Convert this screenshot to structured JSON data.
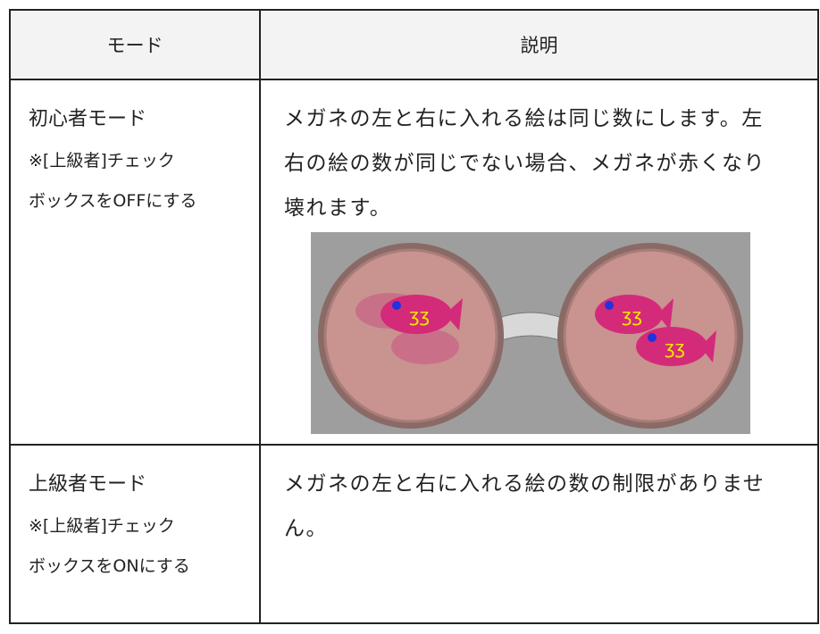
{
  "table": {
    "header": [
      "モード",
      "説明"
    ],
    "rows": [
      {
        "mode": "初心者モード",
        "note": [
          "※[上級者]チェック",
          "ボックスをOFFにする"
        ],
        "description": [
          "メガネの左と右に入れる絵は同じ数にします。左",
          "右の絵の数が同じでない場合、メガネが赤くなり",
          "壊れます。"
        ]
      },
      {
        "mode": "上級者モード",
        "note": [
          "※[上級者]チェック",
          "ボックスをONにする"
        ],
        "description": [
          "メガネの左と右に入れる絵の数の制限がありませ",
          "ん。"
        ]
      }
    ]
  }
}
